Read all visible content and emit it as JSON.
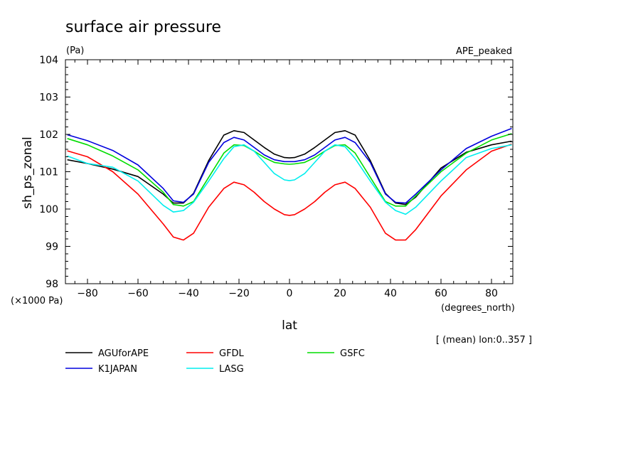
{
  "title": "surface air pressure",
  "units": "(Pa)",
  "experiment": "APE_peaked",
  "mean_note": "[ (mean) lon:0..357 ]",
  "chart_data": {
    "type": "line",
    "title": "surface air pressure",
    "xlabel": "lat",
    "x_units": "(degrees_north)",
    "ylabel": "sh_ps_zonal",
    "y_scale_note": "(×1000 Pa)",
    "xlim": [
      -88,
      88
    ],
    "ylim": [
      98,
      104
    ],
    "xticks": [
      -80,
      -60,
      -40,
      -20,
      0,
      20,
      40,
      60,
      80
    ],
    "yticks": [
      98,
      99,
      100,
      101,
      102,
      103,
      104
    ],
    "grid": false,
    "legend_position": "bottom",
    "x": [
      -88,
      -80,
      -70,
      -60,
      -50,
      -46,
      -42,
      -38,
      -32,
      -26,
      -22,
      -18,
      -14,
      -10,
      -6,
      -2,
      0,
      2,
      6,
      10,
      14,
      18,
      22,
      26,
      32,
      38,
      42,
      46,
      50,
      60,
      70,
      80,
      88
    ],
    "series": [
      {
        "name": "AGUforAPE",
        "color": "#000000",
        "values": [
          101.32,
          101.22,
          101.07,
          100.87,
          100.4,
          100.16,
          100.16,
          100.42,
          101.3,
          101.98,
          102.1,
          102.05,
          101.85,
          101.65,
          101.47,
          101.38,
          101.37,
          101.38,
          101.47,
          101.65,
          101.85,
          102.05,
          102.1,
          101.98,
          101.3,
          100.42,
          100.16,
          100.12,
          100.32,
          101.1,
          101.52,
          101.72,
          101.82
        ]
      },
      {
        "name": "GFDL",
        "color": "#ff0000",
        "values": [
          101.56,
          101.4,
          101.0,
          100.4,
          99.6,
          99.25,
          99.17,
          99.35,
          100.05,
          100.55,
          100.72,
          100.65,
          100.45,
          100.2,
          100.0,
          99.85,
          99.83,
          99.85,
          100.0,
          100.2,
          100.45,
          100.65,
          100.72,
          100.55,
          100.05,
          99.35,
          99.17,
          99.17,
          99.45,
          100.35,
          101.05,
          101.55,
          101.74
        ]
      },
      {
        "name": "GSFC",
        "color": "#00dd00",
        "values": [
          101.89,
          101.72,
          101.42,
          101.05,
          100.45,
          100.12,
          100.08,
          100.2,
          100.85,
          101.5,
          101.72,
          101.7,
          101.55,
          101.38,
          101.25,
          101.21,
          101.2,
          101.21,
          101.25,
          101.38,
          101.55,
          101.7,
          101.72,
          101.5,
          100.85,
          100.2,
          100.08,
          100.08,
          100.35,
          101.0,
          101.5,
          101.85,
          102.02
        ]
      },
      {
        "name": "K1JAPAN",
        "color": "#0000dd",
        "values": [
          101.99,
          101.83,
          101.57,
          101.18,
          100.55,
          100.22,
          100.18,
          100.4,
          101.25,
          101.78,
          101.92,
          101.85,
          101.65,
          101.45,
          101.32,
          101.27,
          101.27,
          101.27,
          101.32,
          101.45,
          101.65,
          101.85,
          101.92,
          101.78,
          101.25,
          100.4,
          100.18,
          100.16,
          100.4,
          101.05,
          101.62,
          101.95,
          102.16
        ]
      },
      {
        "name": "LASG",
        "color": "#00eeee",
        "values": [
          101.42,
          101.22,
          101.12,
          100.75,
          100.1,
          99.92,
          99.96,
          100.18,
          100.75,
          101.35,
          101.67,
          101.72,
          101.55,
          101.25,
          100.95,
          100.78,
          100.76,
          100.78,
          100.95,
          101.25,
          101.55,
          101.72,
          101.67,
          101.35,
          100.75,
          100.18,
          99.96,
          99.86,
          100.05,
          100.75,
          101.38,
          101.62,
          101.72
        ]
      }
    ]
  }
}
